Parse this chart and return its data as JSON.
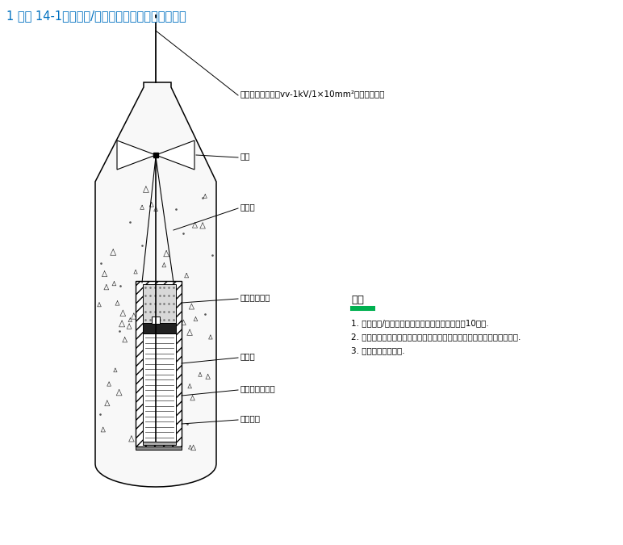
{
  "title": "1 附图 14-1：长效铜/硫酸铜参比电极结构示意图。",
  "title_color": "#0070C0",
  "title_fontsize": 10.5,
  "bg_color": "#ffffff",
  "line_color": "#000000",
  "label_wire": "参比电极引出线（vv-1kV/1×10mm²，黄色护套）",
  "label_terminal": "端子",
  "label_bag": "棉布袋",
  "label_filler": "参比电极填料",
  "label_copper_wire": "纯铜线",
  "label_solution": "饱和硫酸铜溶液",
  "label_shell": "陶瓷外壳",
  "note_title": "说明",
  "note_underline_color": "#00b050",
  "notes": [
    "1. 预包装铜/硫酸铜参比电极所需填料重量大约为10公斤.",
    "2. 在参比电极安装前，必须在清水中进行充分浸泡，使填料与水充分混合.",
    "3. 图中尺寸以毫米计."
  ]
}
